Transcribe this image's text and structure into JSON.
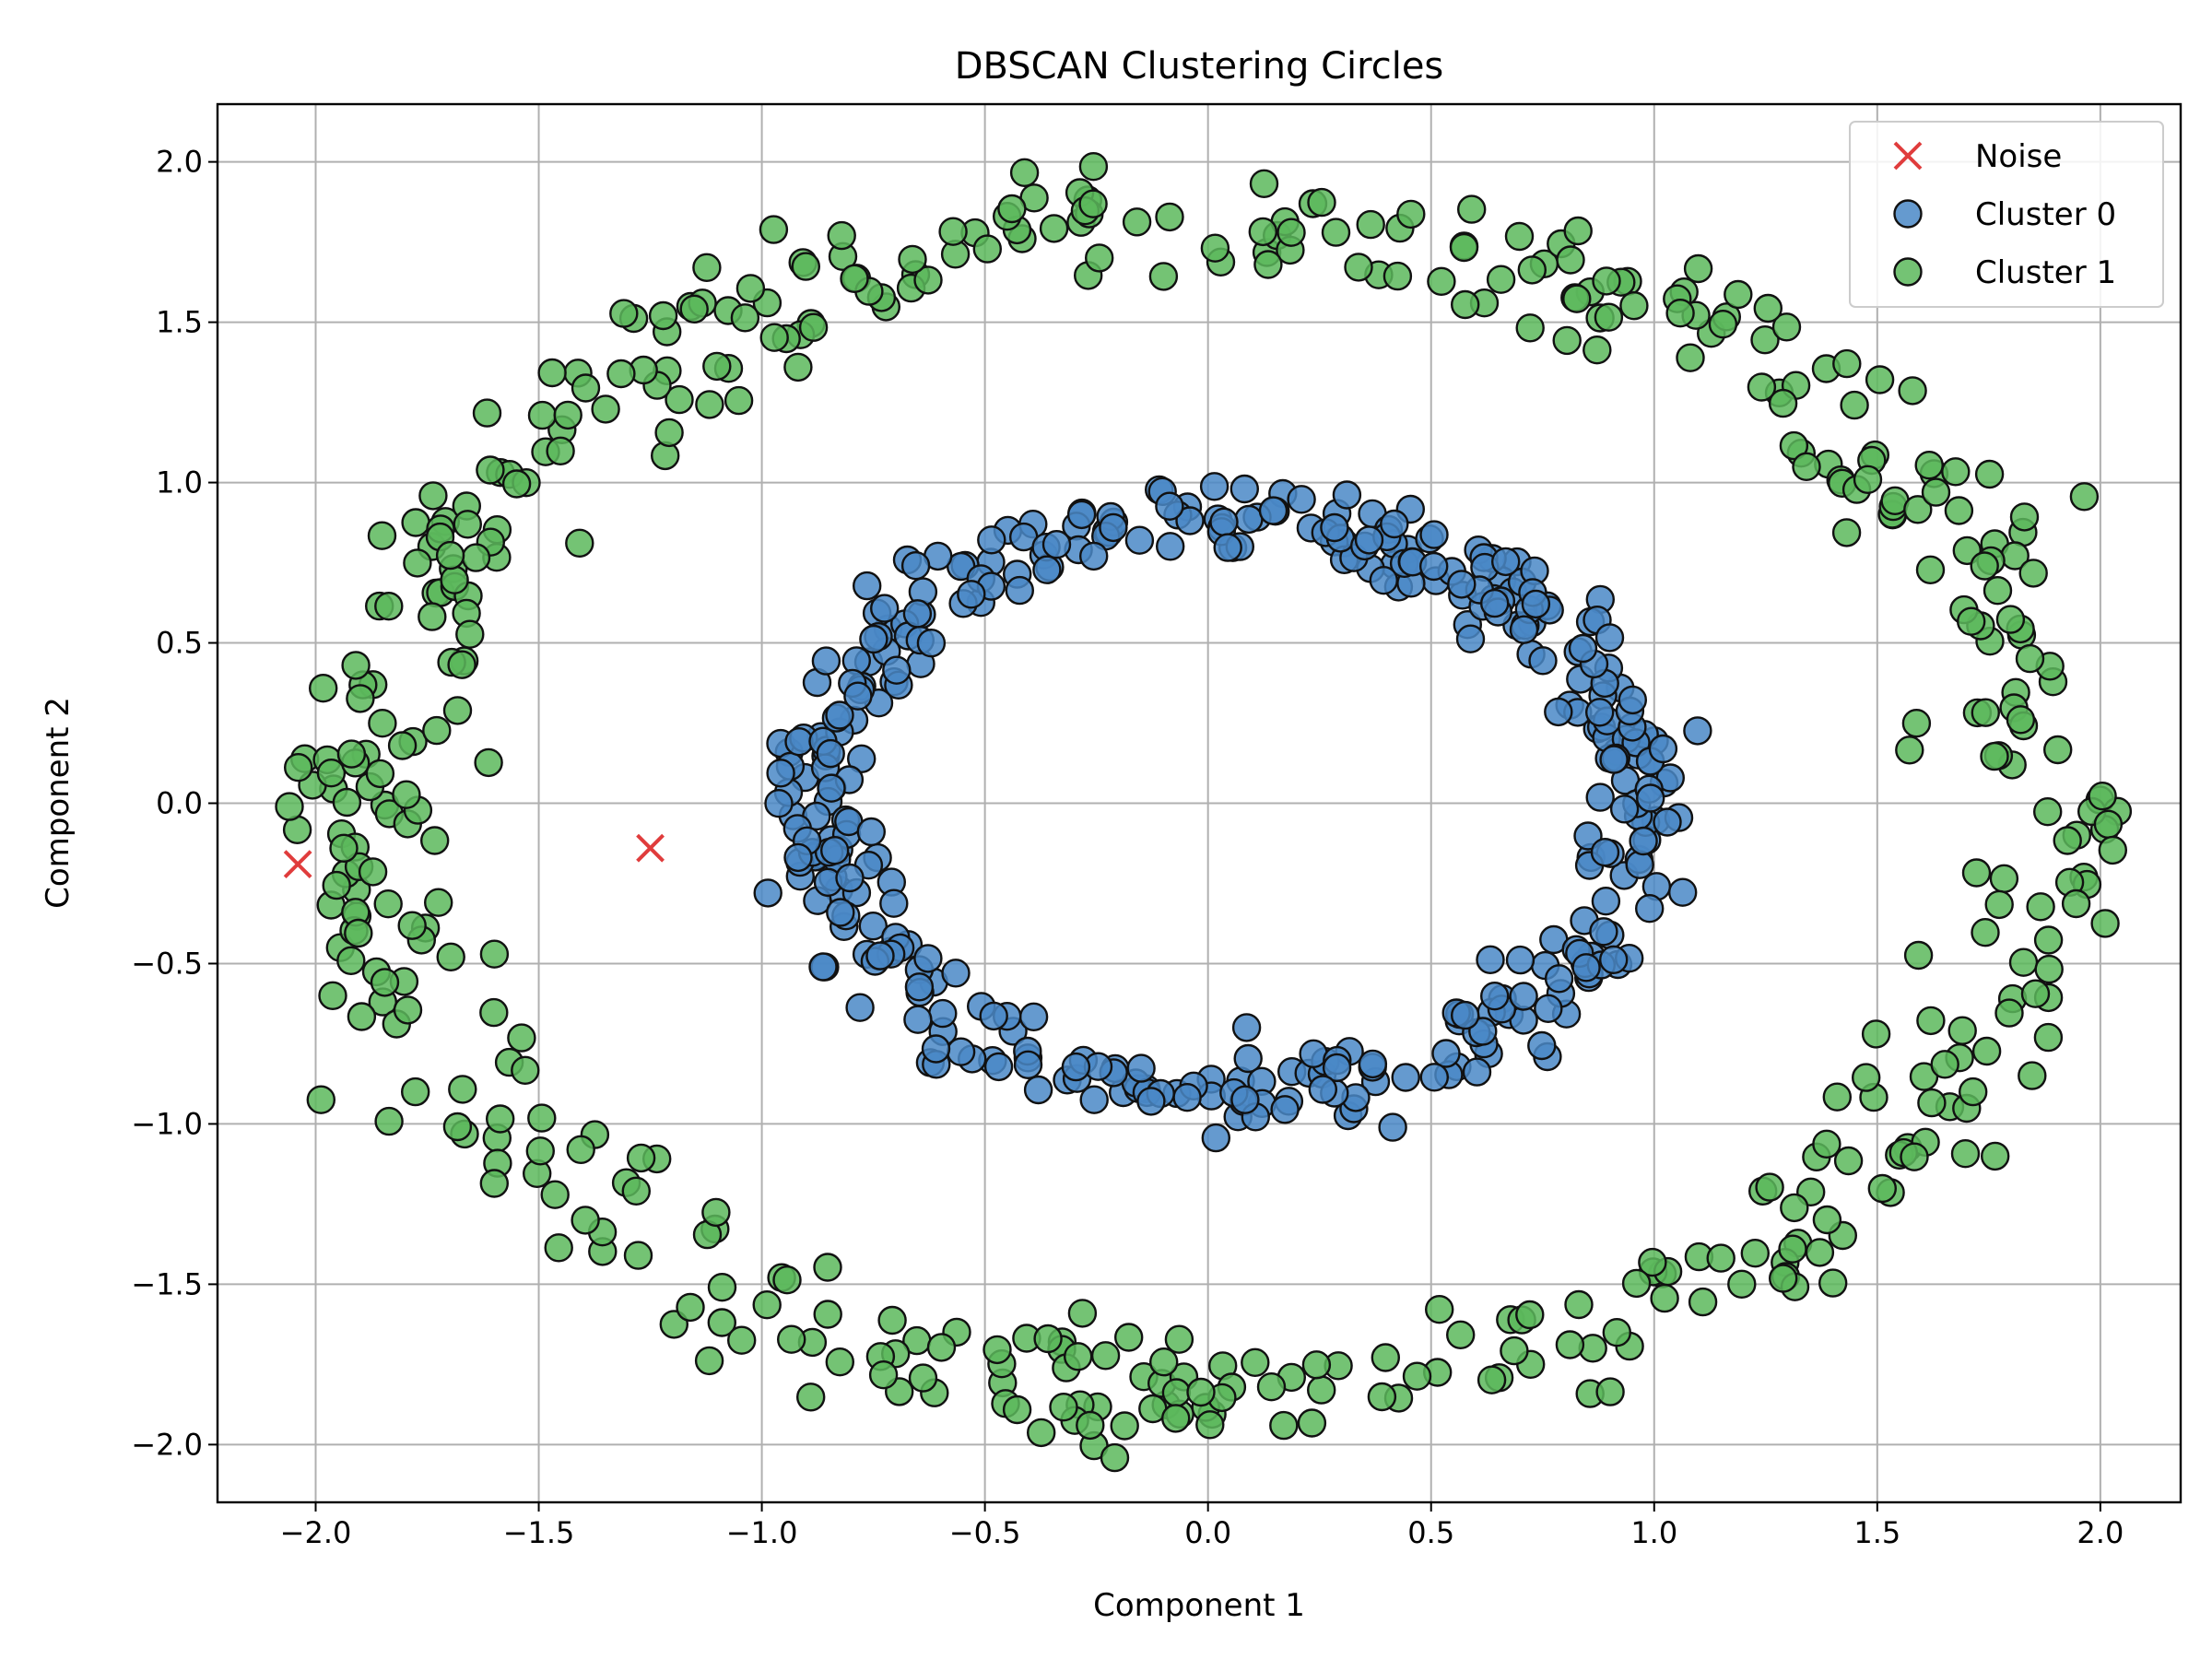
{
  "chart_data": {
    "type": "scatter",
    "title": "DBSCAN Clustering Circles",
    "xlabel": "Component 1",
    "ylabel": "Component 2",
    "xlim": [
      -2.22,
      2.18
    ],
    "ylim": [
      -2.18,
      2.18
    ],
    "xticks": [
      -2.0,
      -1.5,
      -1.0,
      -0.5,
      0.0,
      0.5,
      1.0,
      1.5,
      2.0
    ],
    "yticks": [
      -2.0,
      -1.5,
      -1.0,
      -0.5,
      0.0,
      0.5,
      1.0,
      1.5,
      2.0
    ],
    "xtick_labels": [
      "−2.0",
      "−1.5",
      "−1.0",
      "−0.5",
      "0.0",
      "0.5",
      "1.0",
      "1.5",
      "2.0"
    ],
    "ytick_labels": [
      "−2.0",
      "−1.5",
      "−1.0",
      "−0.5",
      "0.0",
      "0.5",
      "1.0",
      "1.5",
      "2.0"
    ],
    "grid": true,
    "legend_position": "top-right",
    "series": [
      {
        "name": "Noise",
        "marker": "x",
        "color": "#e03c3c",
        "points": [
          [
            -2.04,
            -0.19
          ],
          [
            -1.25,
            -0.14
          ]
        ]
      },
      {
        "name": "Cluster 0",
        "marker": "o",
        "color": "#4a88c7",
        "ring": {
          "cx": 0.04,
          "cy": -0.01,
          "rx": 0.92,
          "ry": 0.9,
          "jitter": 0.06,
          "count": 400,
          "seed": 11
        }
      },
      {
        "name": "Cluster 1",
        "marker": "o",
        "color": "#5cb85c",
        "ring": {
          "cx": 0.0,
          "cy": 0.0,
          "rx": 1.87,
          "ry": 1.83,
          "jitter": 0.1,
          "count": 500,
          "seed": 29
        }
      }
    ]
  }
}
